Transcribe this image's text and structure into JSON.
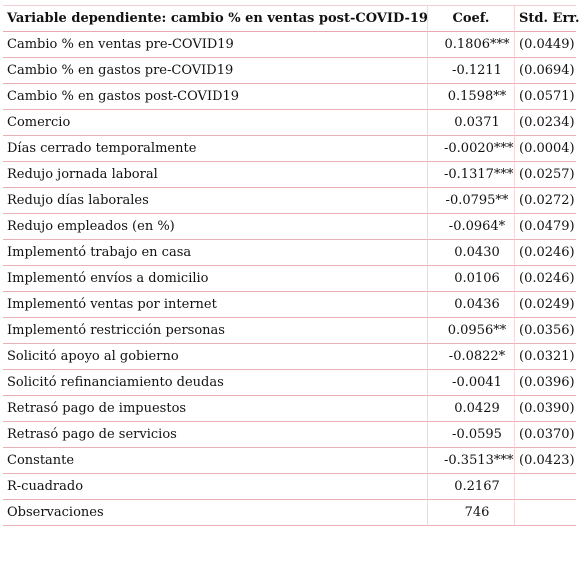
{
  "header": {
    "variable": "Variable dependiente: cambio % en ventas post-COVID-19",
    "coef": "Coef.",
    "se": "Std. Err."
  },
  "rows": [
    {
      "label": "Cambio % en ventas pre-COVID19",
      "coef": "0.1806***",
      "se": "(0.0449)"
    },
    {
      "label": "Cambio % en gastos pre-COVID19",
      "coef": "-0.1211",
      "se": "(0.0694)"
    },
    {
      "label": "Cambio % en gastos post-COVID19",
      "coef": "0.1598**",
      "se": "(0.0571)"
    },
    {
      "label": "Comercio",
      "coef": "0.0371",
      "se": "(0.0234)"
    },
    {
      "label": "Días cerrado temporalmente",
      "coef": "-0.0020***",
      "se": "(0.0004)"
    },
    {
      "label": "Redujo jornada laboral",
      "coef": "-0.1317***",
      "se": "(0.0257)"
    },
    {
      "label": "Redujo días laborales",
      "coef": "-0.0795**",
      "se": "(0.0272)"
    },
    {
      "label": "Redujo empleados (en %)",
      "coef": "-0.0964*",
      "se": "(0.0479)"
    },
    {
      "label": "Implementó trabajo en casa",
      "coef": "0.0430",
      "se": "(0.0246)"
    },
    {
      "label": "Implementó envíos a domicilio",
      "coef": "0.0106",
      "se": "(0.0246)"
    },
    {
      "label": "Implementó ventas por internet",
      "coef": "0.0436",
      "se": "(0.0249)"
    },
    {
      "label": "Implementó restricción personas",
      "coef": "0.0956**",
      "se": "(0.0356)"
    },
    {
      "label": "Solicitó apoyo al gobierno",
      "coef": "-0.0822*",
      "se": "(0.0321)"
    },
    {
      "label": "Solicitó refinanciamiento deudas",
      "coef": "-0.0041",
      "se": "(0.0396)"
    },
    {
      "label": "Retrasó pago de impuestos",
      "coef": "0.0429",
      "se": "(0.0390)"
    },
    {
      "label": "Retrasó pago de servicios",
      "coef": "-0.0595",
      "se": "(0.0370)"
    },
    {
      "label": "Constante",
      "coef": "-0.3513***",
      "se": "(0.0423)"
    },
    {
      "label": "R-cuadrado",
      "coef": "0.2167",
      "se": ""
    },
    {
      "label": "Observaciones",
      "coef": "746",
      "se": ""
    }
  ]
}
